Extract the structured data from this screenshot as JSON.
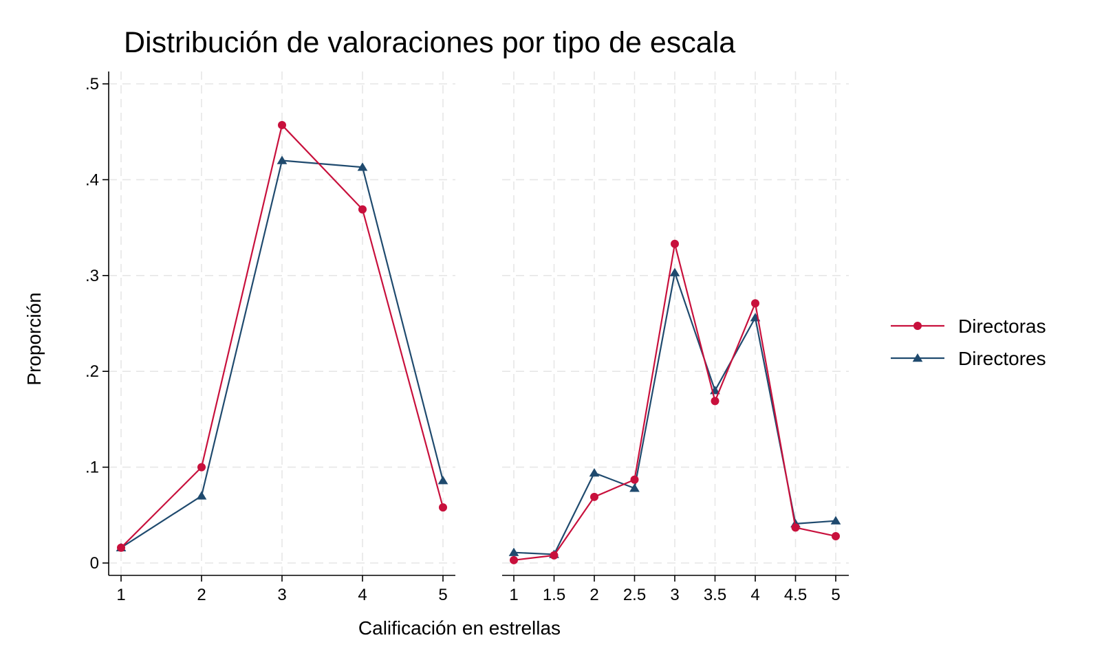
{
  "chart_data": {
    "type": "line",
    "title": "Distribución de valoraciones por tipo de escala",
    "xlabel": "Calificación en estrellas",
    "ylabel": "Proporción",
    "ylim": [
      0,
      0.5
    ],
    "y_ticks": [
      0,
      0.1,
      0.2,
      0.3,
      0.4,
      0.5
    ],
    "y_tick_labels": [
      "0",
      ".1",
      ".2",
      ".3",
      ".4",
      ".5"
    ],
    "grid": true,
    "legend_position": "right",
    "colors": {
      "Directoras": "#c8103c",
      "Directores": "#1f4a6e"
    },
    "markers": {
      "Directoras": "circle",
      "Directores": "triangle"
    },
    "panels": [
      {
        "x": [
          1,
          2,
          3,
          4,
          5
        ],
        "x_tick_labels": [
          "1",
          "2",
          "3",
          "4",
          "5"
        ],
        "series": [
          {
            "name": "Directoras",
            "values": [
              0.016,
              0.1,
              0.457,
              0.369,
              0.058
            ]
          },
          {
            "name": "Directores",
            "values": [
              0.016,
              0.07,
              0.42,
              0.413,
              0.086
            ]
          }
        ]
      },
      {
        "x": [
          1,
          1.5,
          2,
          2.5,
          3,
          3.5,
          4,
          4.5,
          5
        ],
        "x_tick_labels": [
          "1",
          "1.5",
          "2",
          "2.5",
          "3",
          "3.5",
          "4",
          "4.5",
          "5"
        ],
        "series": [
          {
            "name": "Directoras",
            "values": [
              0.003,
              0.008,
              0.069,
              0.087,
              0.333,
              0.169,
              0.271,
              0.037,
              0.028
            ]
          },
          {
            "name": "Directores",
            "values": [
              0.011,
              0.009,
              0.094,
              0.078,
              0.303,
              0.18,
              0.256,
              0.041,
              0.044
            ]
          }
        ]
      }
    ]
  }
}
